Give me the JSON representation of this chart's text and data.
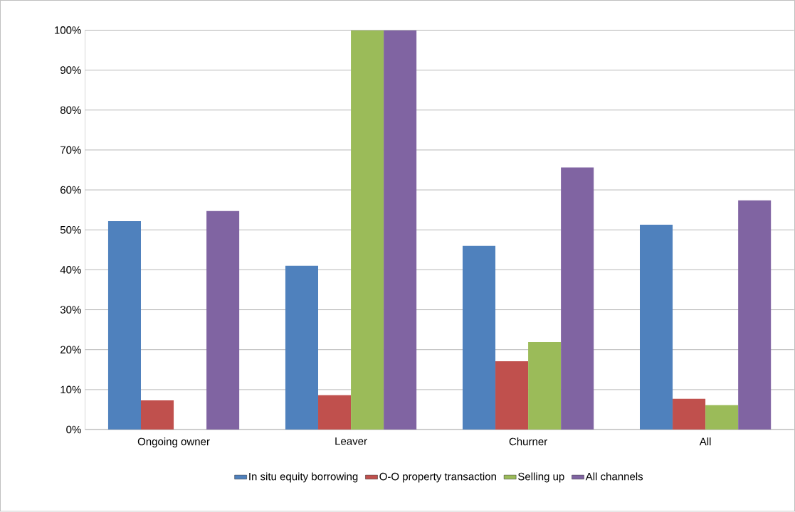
{
  "chart_data": {
    "type": "bar",
    "categories": [
      "Ongoing owner",
      "Leaver",
      "Churner",
      "All"
    ],
    "series": [
      {
        "name": "In situ equity borrowing",
        "color": "#4f81bd",
        "values": [
          52.2,
          41.0,
          46.0,
          51.3
        ]
      },
      {
        "name": "O-O property transaction",
        "color": "#c0504d",
        "values": [
          7.3,
          8.6,
          17.1,
          7.7
        ]
      },
      {
        "name": "Selling up",
        "color": "#9bbb59",
        "values": [
          null,
          100,
          21.9,
          6.1
        ]
      },
      {
        "name": "All channels",
        "color": "#8064a2",
        "values": [
          54.7,
          100,
          65.6,
          57.4
        ]
      }
    ],
    "ylim": [
      0,
      100
    ],
    "yticks": [
      {
        "value": 0,
        "label": "0%"
      },
      {
        "value": 10,
        "label": "10%"
      },
      {
        "value": 20,
        "label": "20%"
      },
      {
        "value": 30,
        "label": "30%"
      },
      {
        "value": 40,
        "label": "40%"
      },
      {
        "value": 50,
        "label": "50%"
      },
      {
        "value": 60,
        "label": "60%"
      },
      {
        "value": 70,
        "label": "70%"
      },
      {
        "value": 80,
        "label": "80%"
      },
      {
        "value": 90,
        "label": "90%"
      },
      {
        "value": 100,
        "label": "100%"
      }
    ],
    "grid": "y",
    "legend": "bottom"
  }
}
